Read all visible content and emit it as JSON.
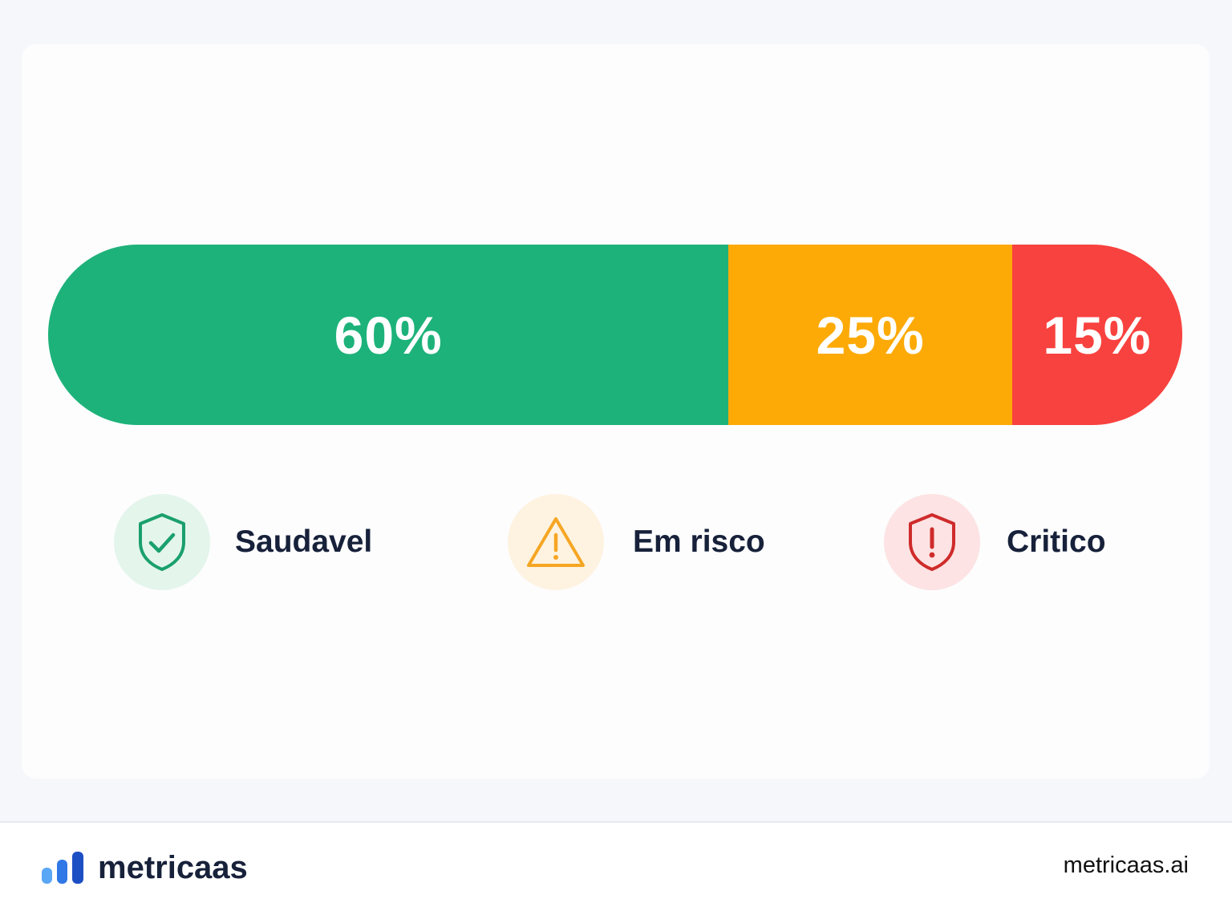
{
  "chart_data": {
    "type": "bar",
    "orientation": "horizontal-stacked",
    "categories": [
      "Saudavel",
      "Em risco",
      "Critico"
    ],
    "values": [
      60,
      25,
      15
    ],
    "labels": [
      "60%",
      "25%",
      "15%"
    ],
    "colors": [
      "#1db27a",
      "#fdaa07",
      "#f8423f"
    ],
    "legend": [
      {
        "label": "Saudavel",
        "icon": "shield-check-icon",
        "color": "#1aa06c",
        "bg": "#e4f5ec"
      },
      {
        "label": "Em risco",
        "icon": "warning-triangle-icon",
        "color": "#f6a623",
        "bg": "#fef3e1"
      },
      {
        "label": "Critico",
        "icon": "shield-alert-icon",
        "color": "#cf2b2b",
        "bg": "#fde3e3"
      }
    ]
  },
  "footer": {
    "brand": "metricaas",
    "site": "metricaas.ai",
    "logo_icon": "bar-chart-logo-icon",
    "logo_colors": [
      "#5aa7f5",
      "#2f78e6",
      "#1d4fc4"
    ]
  }
}
